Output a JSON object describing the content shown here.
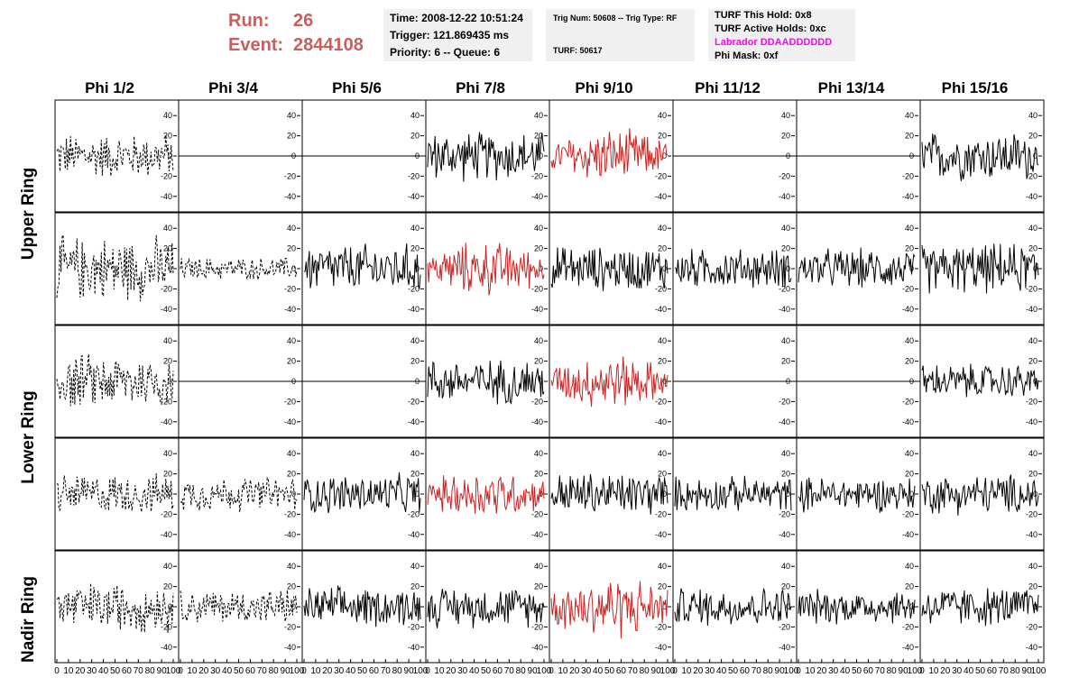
{
  "header": {
    "run_label": "Run:",
    "run_value": "26",
    "event_label": "Event:",
    "event_value": "2844108",
    "time_line": "Time: 2008-12-22 10:51:24",
    "trigger_line": "Trigger: 121.869435 ms",
    "priority_line": "Priority: 6 -- Queue: 6",
    "trig_num_line": "Trig Num: 50608 -- Trig Type: RF",
    "turf_line": "TURF: 50617",
    "turf_hold_line": "TURF This Hold: 0x8",
    "turf_active_line": "TURF Active Holds: 0xc",
    "labrador_line": "Labrador DDAADDDDDD",
    "phi_mask_line": "Phi Mask: 0xf"
  },
  "chart_data": {
    "type": "line",
    "columns": [
      "Phi 1/2",
      "Phi 3/4",
      "Phi 5/6",
      "Phi 7/8",
      "Phi 9/10",
      "Phi 11/12",
      "Phi 13/14",
      "Phi 15/16"
    ],
    "rows": [
      "Upper Ring",
      "Upper Ring",
      "Lower Ring",
      "Lower Ring",
      "Nadir Ring"
    ],
    "row_labels": [
      "Upper Ring",
      "Lower Ring",
      "Nadir Ring"
    ],
    "xlim": [
      0,
      100
    ],
    "ylim": [
      -50,
      50
    ],
    "y_ticks": [
      -40,
      -20,
      0,
      20,
      40
    ],
    "x_ticks": [
      0,
      10,
      20,
      30,
      40,
      50,
      60,
      70,
      80,
      90,
      100
    ],
    "colors": {
      "normal": "#000000",
      "triggered": "#cc2222"
    },
    "amplitude": [
      [
        18,
        0,
        0,
        20,
        22,
        0,
        0,
        20
      ],
      [
        26,
        9,
        20,
        22,
        18,
        16,
        16,
        20
      ],
      [
        22,
        0,
        0,
        18,
        22,
        0,
        0,
        14
      ],
      [
        16,
        14,
        16,
        20,
        18,
        14,
        14,
        16
      ],
      [
        20,
        14,
        16,
        16,
        26,
        16,
        14,
        16
      ]
    ],
    "style": [
      [
        "dashed",
        "flat",
        "flat",
        "solid",
        "red",
        "flat",
        "flat",
        "solid"
      ],
      [
        "dashed",
        "dashed",
        "solid",
        "red",
        "solid",
        "solid",
        "solid",
        "solid"
      ],
      [
        "dashed",
        "flat",
        "flat",
        "solid",
        "red",
        "flat",
        "flat",
        "solid"
      ],
      [
        "dashed",
        "dashed",
        "solid",
        "red",
        "solid",
        "solid",
        "solid",
        "solid"
      ],
      [
        "dashed",
        "dashed",
        "solid",
        "solid",
        "red",
        "solid",
        "solid",
        "solid"
      ]
    ]
  }
}
